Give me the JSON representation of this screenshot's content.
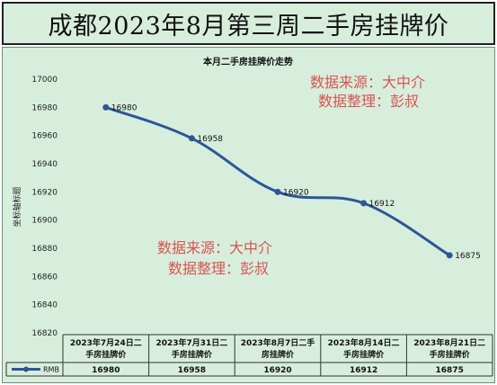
{
  "title": "成都2023年8月第三周二手房挂牌价",
  "watermarks": {
    "line1": "数据来源：大中介",
    "line2": "数据整理：彭叔"
  },
  "colors": {
    "background": "#d7eedd",
    "line": "#2e5597",
    "watermark": "#d9534f"
  },
  "chart_data": {
    "type": "line",
    "title": "本月二手房挂牌价走势",
    "ylabel": "坐标轴标题",
    "categories": [
      [
        "2023年7月24日二",
        "手房挂牌价"
      ],
      [
        "2023年7月31日二",
        "手房挂牌价"
      ],
      [
        "2023年8月7日二手",
        "房挂牌价"
      ],
      [
        "2023年8月14日二",
        "手房挂牌价"
      ],
      [
        "2023年8月21日二",
        "手房挂牌价"
      ]
    ],
    "series": [
      {
        "name": "RMB",
        "values": [
          16980,
          16958,
          16920,
          16912,
          16875
        ]
      }
    ],
    "ylim": [
      16820,
      17000
    ],
    "yticks": [
      "17000",
      "16980",
      "16960",
      "16940",
      "16920",
      "16900",
      "16880",
      "16860",
      "16840",
      "16820"
    ],
    "data_labels": [
      "16980",
      "16958",
      "16920",
      "16912",
      "16875"
    ],
    "table_values": [
      "16980",
      "16958",
      "16920",
      "16912",
      "16875"
    ],
    "grid": false,
    "legend": "table-left"
  }
}
